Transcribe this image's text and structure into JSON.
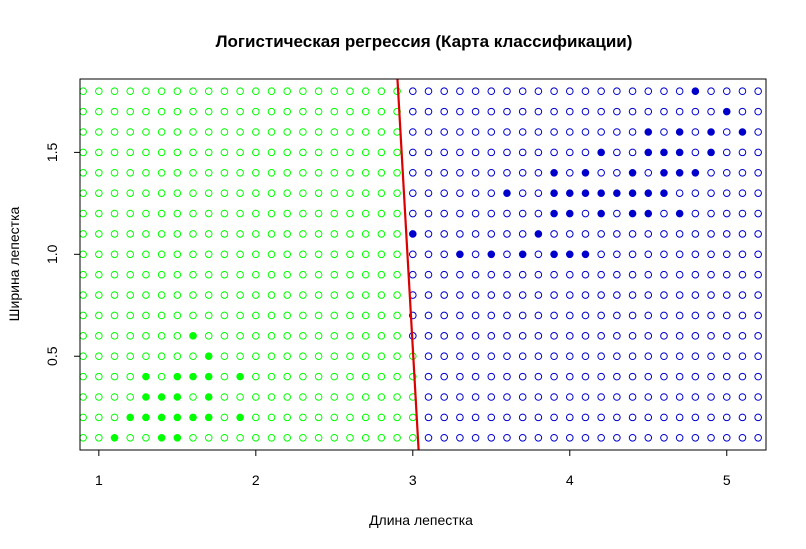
{
  "chart_data": {
    "type": "scatter",
    "title": "Логистическая регрессия (Карта классификации)",
    "xlabel": "Длина лепестка",
    "ylabel": "Ширина лепестка",
    "xlim": [
      0.88,
      5.25
    ],
    "ylim": [
      0.04,
      1.86
    ],
    "x_ticks": [
      "1",
      "2",
      "3",
      "4",
      "5"
    ],
    "y_ticks": [
      "0.5",
      "1.0",
      "1.5"
    ],
    "grid": {
      "x_start": 0.9,
      "x_step": 0.1,
      "x_count": 44,
      "y_start": 0.1,
      "y_step": 0.1,
      "y_count": 18
    },
    "colors": {
      "class_a": "#00ff00",
      "class_b": "#0000cd",
      "boundary": "#dd0000",
      "frame": "#000000"
    },
    "decision_boundary": [
      [
        2.9,
        1.89
      ],
      [
        3.04,
        0.0
      ]
    ],
    "series": [
      {
        "points": [
          [
            1.1,
            0.1
          ],
          [
            1.4,
            0.1
          ],
          [
            1.5,
            0.1
          ],
          [
            1.2,
            0.2
          ],
          [
            1.3,
            0.2
          ],
          [
            1.4,
            0.2
          ],
          [
            1.5,
            0.2
          ],
          [
            1.6,
            0.2
          ],
          [
            1.7,
            0.2
          ],
          [
            1.9,
            0.2
          ],
          [
            1.3,
            0.3
          ],
          [
            1.4,
            0.3
          ],
          [
            1.5,
            0.3
          ],
          [
            1.7,
            0.3
          ],
          [
            1.3,
            0.4
          ],
          [
            1.5,
            0.4
          ],
          [
            1.6,
            0.4
          ],
          [
            1.7,
            0.4
          ],
          [
            1.9,
            0.4
          ],
          [
            1.7,
            0.5
          ],
          [
            1.6,
            0.6
          ]
        ]
      },
      {
        "points": [
          [
            3.0,
            1.1
          ],
          [
            3.3,
            1.0
          ],
          [
            3.5,
            1.0
          ],
          [
            3.7,
            1.0
          ],
          [
            3.9,
            1.0
          ],
          [
            4.0,
            1.0
          ],
          [
            4.1,
            1.0
          ],
          [
            3.8,
            1.1
          ],
          [
            3.9,
            1.2
          ],
          [
            4.0,
            1.2
          ],
          [
            4.2,
            1.2
          ],
          [
            4.4,
            1.2
          ],
          [
            4.5,
            1.2
          ],
          [
            4.7,
            1.2
          ],
          [
            3.6,
            1.3
          ],
          [
            3.9,
            1.3
          ],
          [
            4.0,
            1.3
          ],
          [
            4.1,
            1.3
          ],
          [
            4.2,
            1.3
          ],
          [
            4.3,
            1.3
          ],
          [
            4.4,
            1.3
          ],
          [
            4.5,
            1.3
          ],
          [
            4.6,
            1.3
          ],
          [
            3.9,
            1.4
          ],
          [
            4.1,
            1.4
          ],
          [
            4.4,
            1.4
          ],
          [
            4.6,
            1.4
          ],
          [
            4.7,
            1.4
          ],
          [
            4.8,
            1.4
          ],
          [
            4.2,
            1.5
          ],
          [
            4.5,
            1.5
          ],
          [
            4.6,
            1.5
          ],
          [
            4.7,
            1.5
          ],
          [
            4.9,
            1.5
          ],
          [
            4.5,
            1.6
          ],
          [
            4.7,
            1.6
          ],
          [
            4.9,
            1.6
          ],
          [
            5.1,
            1.6
          ],
          [
            5.0,
            1.7
          ],
          [
            4.8,
            1.8
          ]
        ]
      }
    ]
  }
}
